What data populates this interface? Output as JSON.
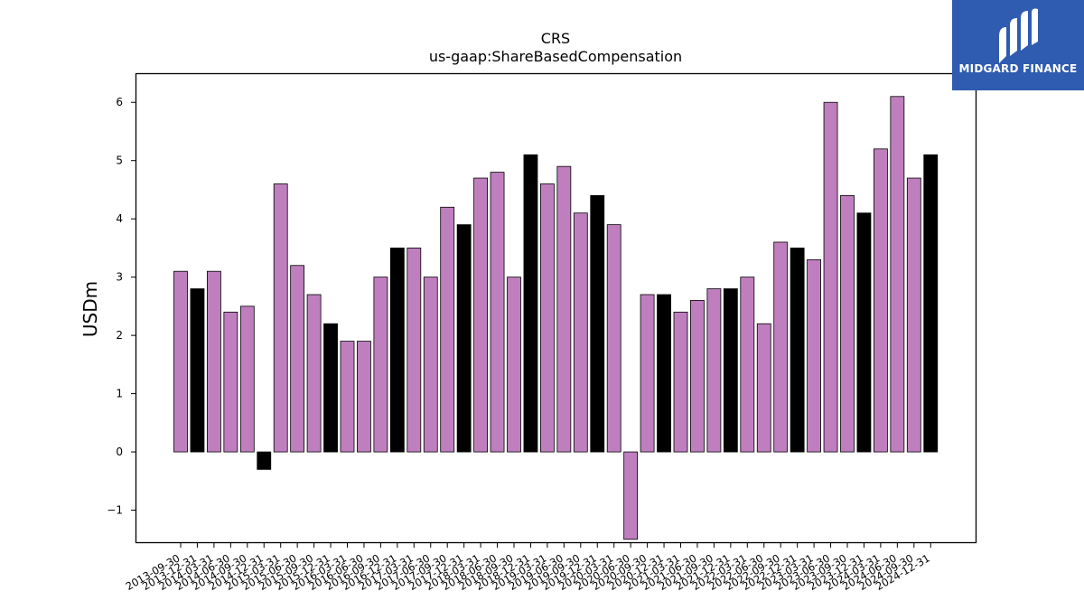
{
  "brand": {
    "name": "MIDGARD FINANCE",
    "bg_color": "#2f5bb0"
  },
  "chart_data": {
    "type": "bar",
    "title": "CRS",
    "subtitle": "us-gaap:ShareBasedCompensation",
    "xlabel": "",
    "ylabel": "USDm",
    "ylim": [
      -1.55,
      6.5
    ],
    "yticks": [
      -1,
      0,
      1,
      2,
      3,
      4,
      5,
      6
    ],
    "grid": false,
    "colors": {
      "quarter": "#bf7fbf",
      "year_end": "#000000",
      "edge": "#000000"
    },
    "categories": [
      "2013-09-30",
      "2013-12-31",
      "2014-03-31",
      "2014-06-30",
      "2014-09-30",
      "2014-12-31",
      "2015-03-31",
      "2015-06-30",
      "2015-09-30",
      "2015-12-31",
      "2016-03-31",
      "2016-06-30",
      "2016-09-30",
      "2016-12-31",
      "2017-03-31",
      "2017-06-30",
      "2017-09-30",
      "2017-12-31",
      "2018-03-31",
      "2018-06-30",
      "2018-09-30",
      "2018-12-31",
      "2019-03-31",
      "2019-06-30",
      "2019-09-30",
      "2019-12-31",
      "2020-03-31",
      "2020-06-30",
      "2020-09-30",
      "2020-12-31",
      "2021-03-31",
      "2021-06-30",
      "2021-09-30",
      "2021-12-31",
      "2022-03-31",
      "2022-06-30",
      "2022-09-30",
      "2022-12-31",
      "2023-03-31",
      "2023-06-30",
      "2023-09-30",
      "2023-12-31",
      "2024-03-31",
      "2024-06-30",
      "2024-09-30",
      "2024-12-31"
    ],
    "values": [
      3.1,
      2.8,
      3.1,
      2.4,
      2.5,
      -0.3,
      4.6,
      3.2,
      2.7,
      2.2,
      1.9,
      1.9,
      3.0,
      3.5,
      3.5,
      3.0,
      4.2,
      3.9,
      4.7,
      4.8,
      3.0,
      5.1,
      4.6,
      4.9,
      4.1,
      4.4,
      3.9,
      -1.5,
      2.7,
      2.7,
      2.4,
      2.6,
      2.8,
      2.8,
      3.0,
      2.2,
      3.6,
      3.5,
      3.3,
      6.0,
      4.4,
      4.1,
      5.2,
      6.1,
      4.7,
      5.1
    ]
  }
}
